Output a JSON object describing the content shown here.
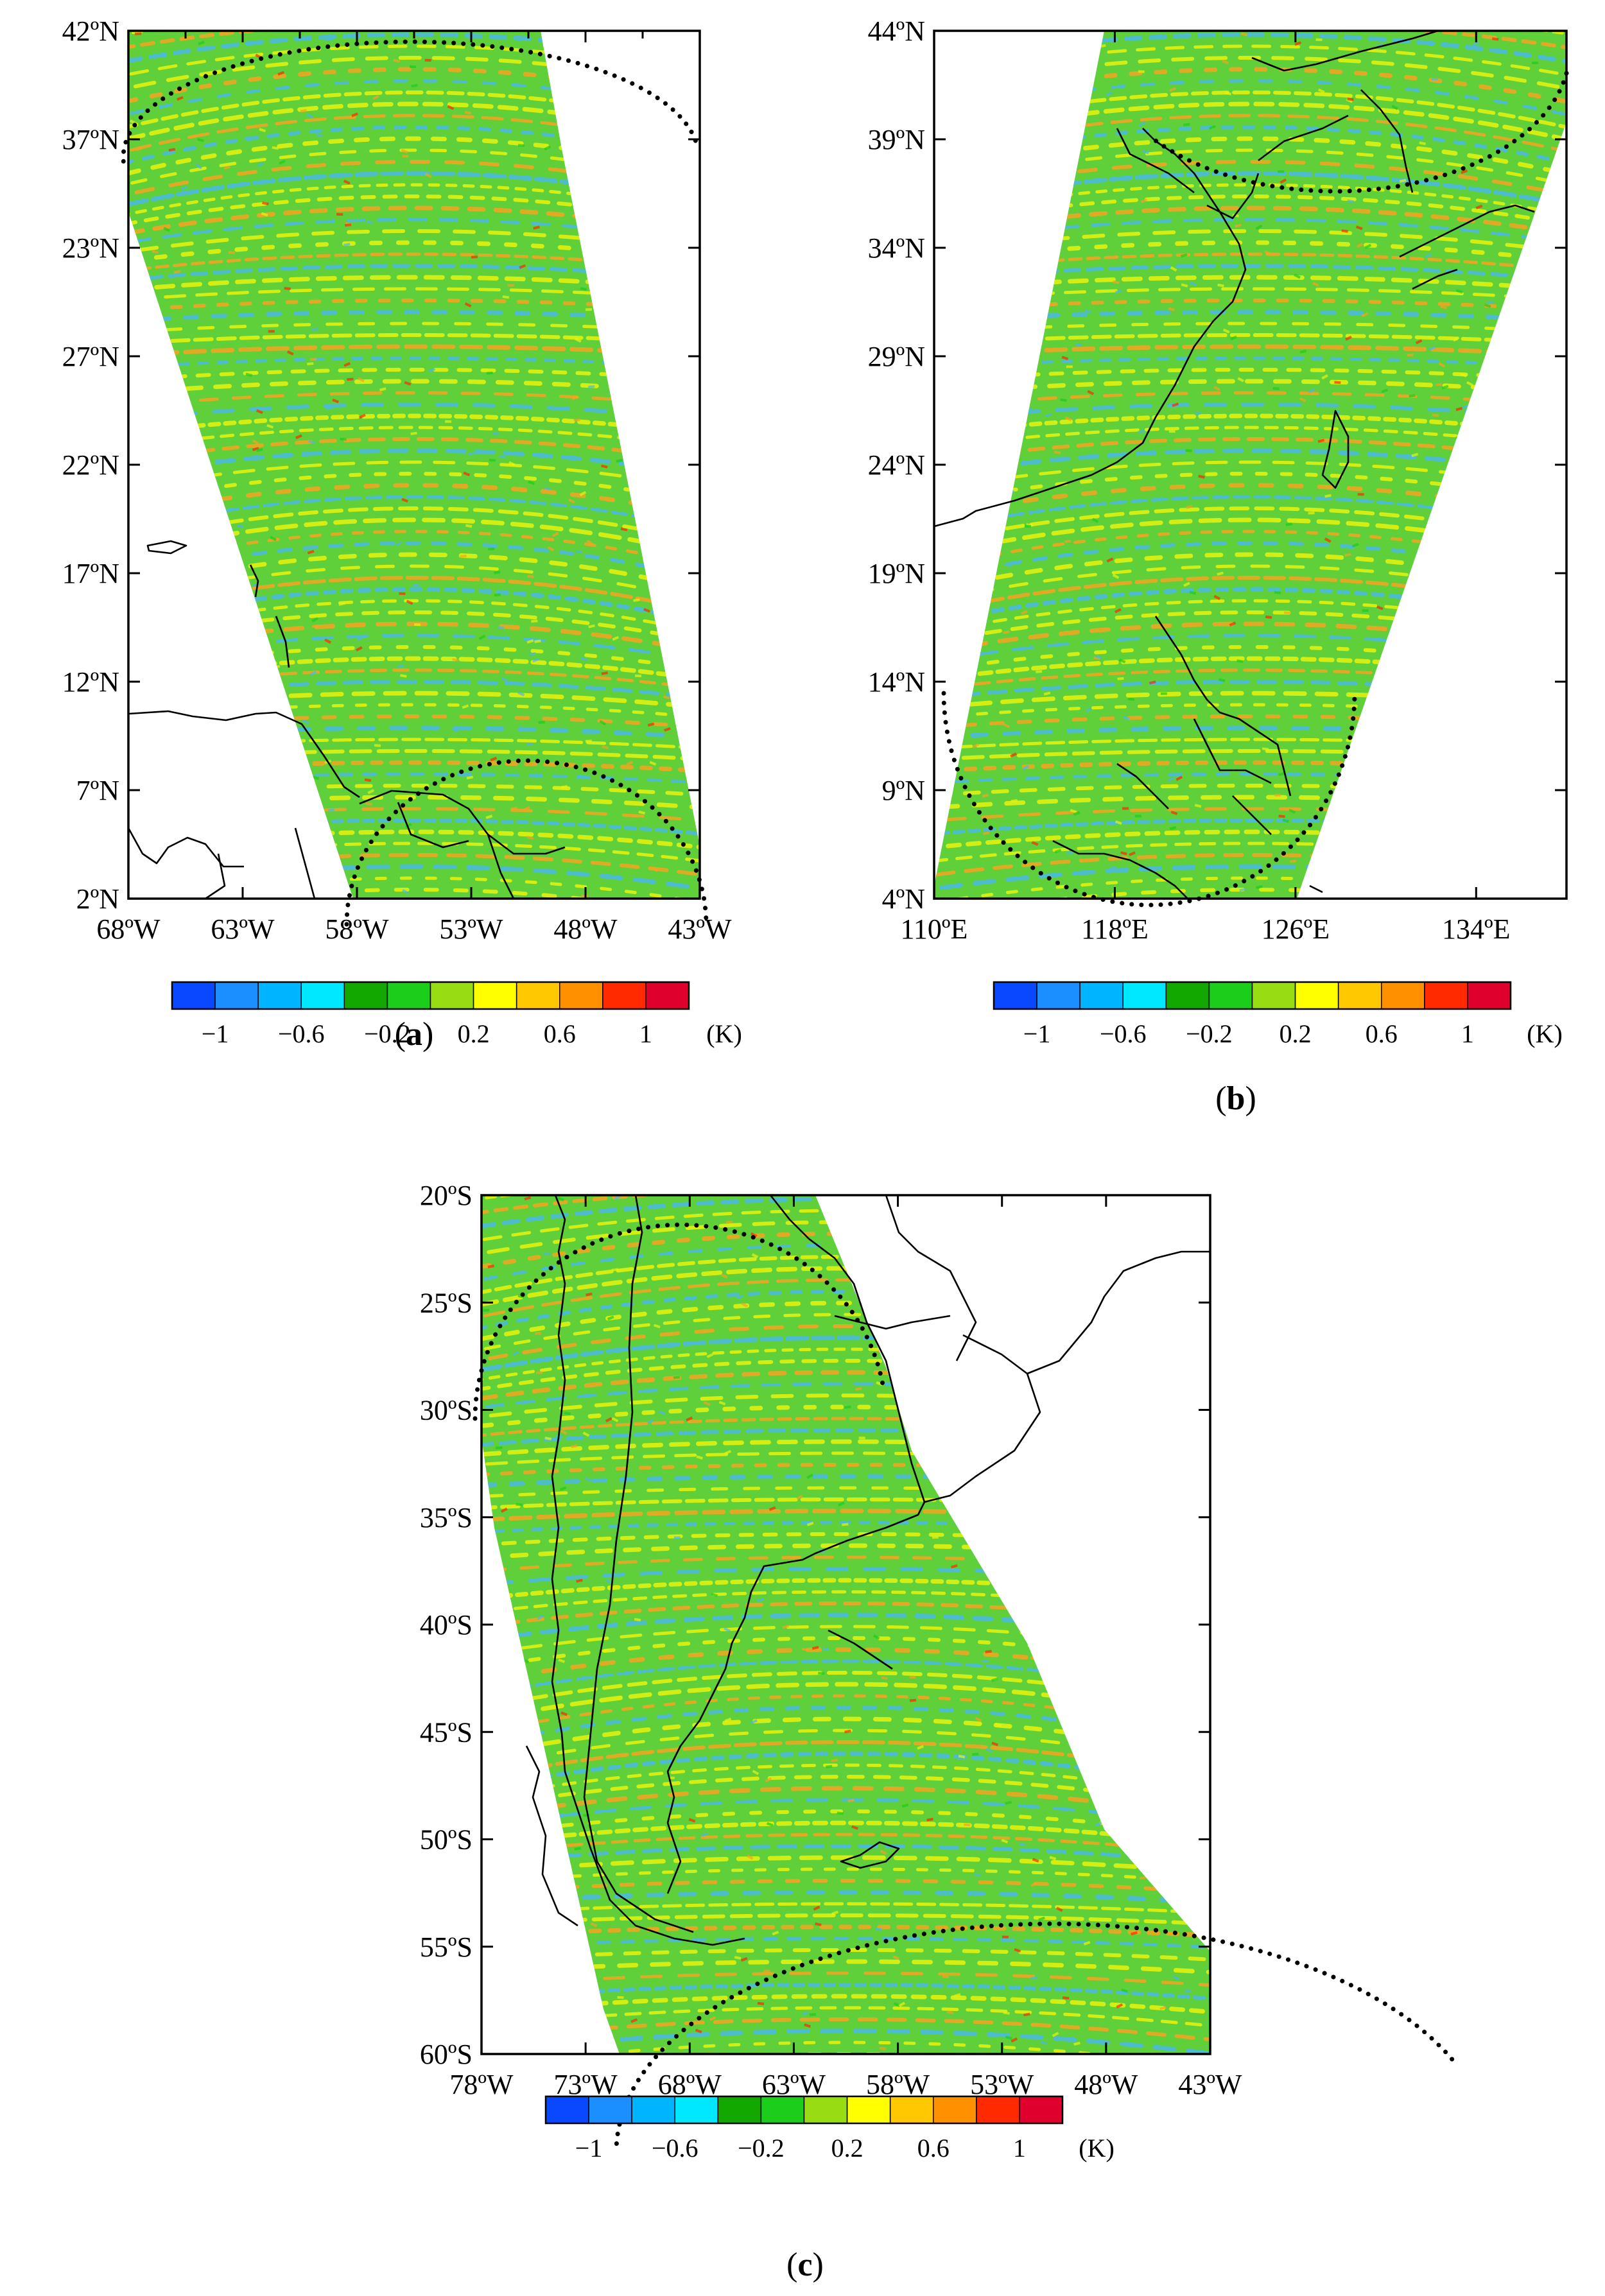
{
  "figure": {
    "colorbar": {
      "colors": [
        "#0a48ff",
        "#1b8fff",
        "#00b4ff",
        "#00e8ff",
        "#12a800",
        "#1ccd1c",
        "#98dc14",
        "#ffff00",
        "#ffc800",
        "#ff9100",
        "#ff2a00",
        "#e0002e"
      ],
      "tick_labels": [
        "−1",
        "−0.6",
        "−0.2",
        "0.2",
        "0.6",
        "1"
      ],
      "unit": "(K)"
    },
    "colors": {
      "frame": "#000000",
      "coastline": "#000000",
      "field_base": "#5fcf3a",
      "band_light": "#e9f20d",
      "band_orange": "#f6a321",
      "band_blue": "#4ab8e6"
    }
  },
  "chart_data": [
    {
      "type": "heatmap",
      "panel_label": "a",
      "xticks": [
        "68ºW",
        "63ºW",
        "58ºW",
        "53ºW",
        "48ºW",
        "43ºW"
      ],
      "yticks": [
        "42ºN",
        "37ºN",
        "23ºN",
        "27ºN",
        "22ºN",
        "17ºN",
        "12ºN",
        "7ºN",
        "2ºN"
      ],
      "xlim": [
        -68,
        -43
      ],
      "value_range": [
        -1.2,
        1.2
      ],
      "unit": "K",
      "grid": false
    },
    {
      "type": "heatmap",
      "panel_label": "b",
      "xticks": [
        "110ºE",
        "118ºE",
        "126ºE",
        "134ºE"
      ],
      "yticks": [
        "44ºN",
        "39ºN",
        "34ºN",
        "29ºN",
        "24ºN",
        "19ºN",
        "14ºN",
        "9ºN",
        "4ºN"
      ],
      "xlim": [
        110,
        138
      ],
      "ylim": [
        4,
        44
      ],
      "value_range": [
        -1.2,
        1.2
      ],
      "unit": "K",
      "grid": false
    },
    {
      "type": "heatmap",
      "panel_label": "c",
      "xticks": [
        "78ºW",
        "73ºW",
        "68ºW",
        "63ºW",
        "58ºW",
        "53ºW",
        "48ºW",
        "43ºW"
      ],
      "yticks": [
        "20ºS",
        "25ºS",
        "30ºS",
        "35ºS",
        "40ºS",
        "45ºS",
        "50ºS",
        "55ºS",
        "60ºS"
      ],
      "xlim": [
        -78,
        -43
      ],
      "ylim": [
        -60,
        -20
      ],
      "value_range": [
        -1.2,
        1.2
      ],
      "unit": "K",
      "grid": false
    }
  ]
}
